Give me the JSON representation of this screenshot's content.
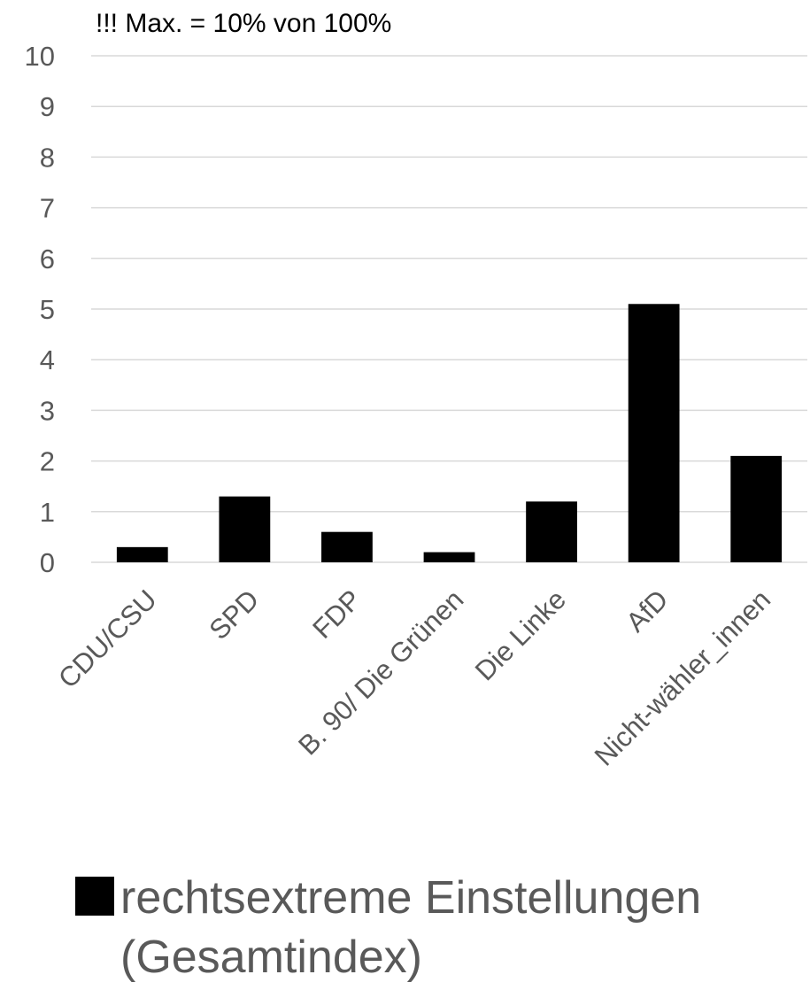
{
  "annotation": "!!! Max. = 10% von 100%",
  "legend": {
    "label_line1": "rechtsextreme Einstellungen",
    "label_line2": "(Gesamtindex)",
    "swatch_color": "#000000"
  },
  "colors": {
    "bar": "#000000",
    "grid": "#d9d9d9",
    "text": "#595959"
  },
  "chart_data": {
    "type": "bar",
    "title": "",
    "xlabel": "",
    "ylabel": "",
    "ylim": [
      0,
      10
    ],
    "yticks": [
      0,
      1,
      2,
      3,
      4,
      5,
      6,
      7,
      8,
      9,
      10
    ],
    "grid": true,
    "legend_position": "bottom",
    "categories": [
      "CDU/CSU",
      "SPD",
      "FDP",
      "B. 90/ Die Grünen",
      "Die Linke",
      "AfD",
      "Nicht-wähler_innen"
    ],
    "series": [
      {
        "name": "rechtsextreme Einstellungen (Gesamtindex)",
        "values": [
          0.3,
          1.3,
          0.6,
          0.2,
          1.2,
          5.1,
          2.1
        ]
      }
    ]
  }
}
